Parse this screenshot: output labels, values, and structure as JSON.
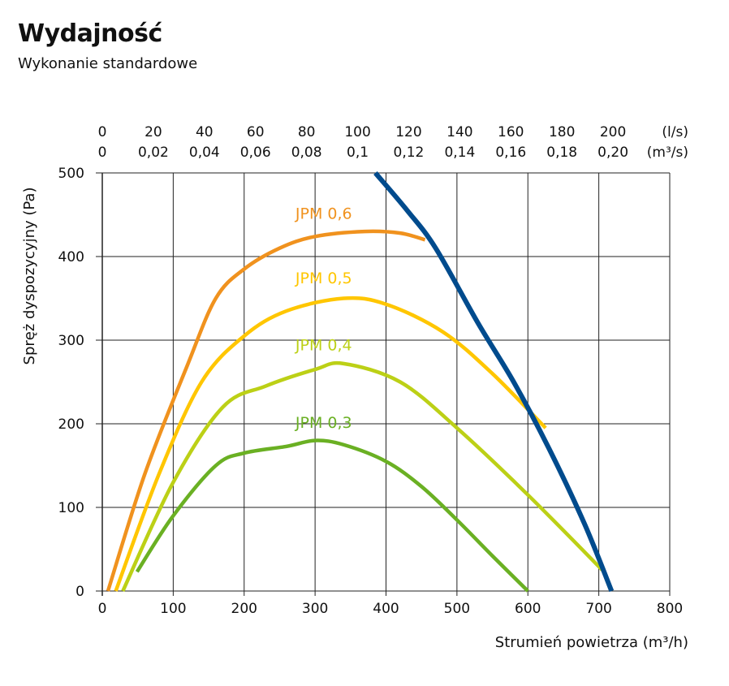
{
  "chart_data": {
    "type": "line",
    "title": "Wydajność",
    "subtitle": "Wykonanie standardowe",
    "xlabel": "Strumień powietrza (m³/h)",
    "ylabel": "Spręż dyspozycyjny (Pa)",
    "xlim": [
      0,
      800
    ],
    "ylim": [
      0,
      500
    ],
    "xticks": [
      0,
      100,
      200,
      300,
      400,
      500,
      600,
      700,
      800
    ],
    "yticks": [
      0,
      100,
      200,
      300,
      400,
      500
    ],
    "grid": true,
    "top_axis": {
      "unit_ls": "(l/s)",
      "unit_m3s": "(m³/s)",
      "ls": [
        0,
        20,
        40,
        60,
        80,
        100,
        120,
        140,
        160,
        180,
        200
      ],
      "m3s": [
        "0",
        "0,02",
        "0,04",
        "0,06",
        "0,08",
        "0,1",
        "0,12",
        "0,14",
        "0,16",
        "0,18",
        "0,20"
      ]
    },
    "series": [
      {
        "name": "JPM 0,6",
        "color": "#f0921e",
        "label_at": [
          270,
          445
        ],
        "x": [
          8,
          60,
          120,
          160,
          200,
          250,
          300,
          370,
          420,
          455
        ],
        "y": [
          0,
          140,
          270,
          350,
          385,
          410,
          424,
          430,
          428,
          420
        ]
      },
      {
        "name": "JPM 0,5",
        "color": "#ffc600",
        "label_at": [
          270,
          368
        ],
        "x": [
          19,
          80,
          140,
          200,
          260,
          340,
          400,
          480,
          550,
          625
        ],
        "y": [
          0,
          140,
          250,
          305,
          335,
          350,
          343,
          310,
          260,
          195
        ]
      },
      {
        "name": "JPM 0,4",
        "color": "#bcd016",
        "label_at": [
          270,
          288
        ],
        "x": [
          29,
          100,
          170,
          230,
          300,
          340,
          420,
          500,
          600,
          705
        ],
        "y": [
          0,
          130,
          220,
          245,
          265,
          272,
          250,
          195,
          115,
          25
        ]
      },
      {
        "name": "JPM 0,3",
        "color": "#6ab023",
        "label_at": [
          270,
          195
        ],
        "x": [
          49,
          100,
          160,
          200,
          260,
          300,
          340,
          400,
          450,
          500,
          550,
          600
        ],
        "y": [
          23,
          90,
          150,
          165,
          173,
          180,
          175,
          155,
          125,
          85,
          42,
          0
        ]
      },
      {
        "name": "",
        "color": "#004b8d",
        "x": [
          385,
          430,
          470,
          530,
          580,
          630,
          680,
          718
        ],
        "y": [
          500,
          455,
          410,
          320,
          250,
          170,
          80,
          0
        ]
      }
    ]
  }
}
